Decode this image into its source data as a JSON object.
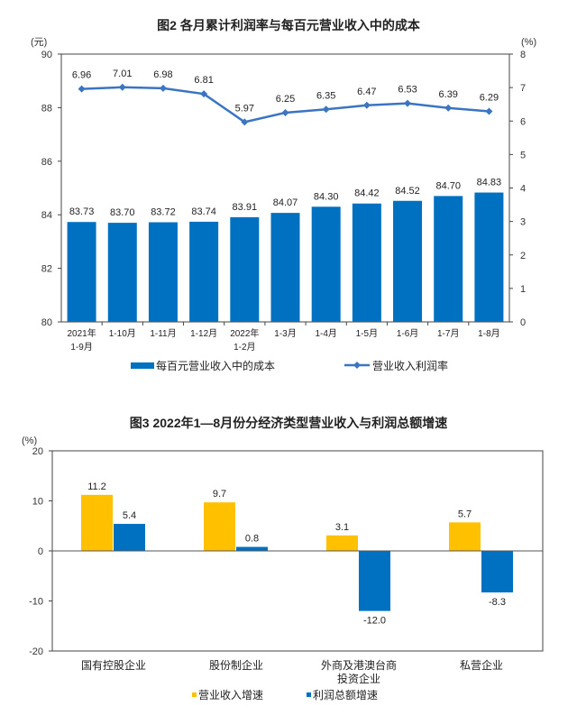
{
  "chart_data": [
    {
      "type": "bar+line",
      "title": "图2  各月累计利润率与每百元营业收入中的成本",
      "ylabel_left": "(元)",
      "ylabel_right": "(%)",
      "ylim_left": [
        80,
        90
      ],
      "yticks_left": [
        "80",
        "82",
        "84",
        "86",
        "88",
        "90"
      ],
      "ylim_right": [
        0,
        8
      ],
      "yticks_right": [
        "0",
        "1",
        "2",
        "3",
        "4",
        "5",
        "6",
        "7",
        "8"
      ],
      "categories": [
        [
          "2021年",
          "1-9月"
        ],
        [
          "1-10月"
        ],
        [
          "1-11月"
        ],
        [
          "1-12月"
        ],
        [
          "2022年",
          "1-2月"
        ],
        [
          "1-3月"
        ],
        [
          "1-4月"
        ],
        [
          "1-5月"
        ],
        [
          "1-6月"
        ],
        [
          "1-7月"
        ],
        [
          "1-8月"
        ]
      ],
      "series": [
        {
          "name": "每百元营业收入中的成本",
          "type": "bar",
          "axis": "left",
          "color": "#0070C0",
          "values": [
            83.73,
            83.7,
            83.72,
            83.74,
            83.91,
            84.07,
            84.3,
            84.42,
            84.52,
            84.7,
            84.83
          ]
        },
        {
          "name": "营业收入利润率",
          "type": "line",
          "axis": "right",
          "color": "#3B75C2",
          "values": [
            6.96,
            7.01,
            6.98,
            6.81,
            5.97,
            6.25,
            6.35,
            6.47,
            6.53,
            6.39,
            6.29
          ]
        }
      ],
      "legend": "bottom",
      "grid": false
    },
    {
      "type": "bar",
      "title": "图3  2022年1—8月份分经济类型营业收入与利润总额增速",
      "ylabel": "(%)",
      "ylim": [
        -20,
        20
      ],
      "yticks": [
        "20",
        "10",
        "0",
        "-10",
        "-20"
      ],
      "categories": [
        [
          "国有控股企业"
        ],
        [
          "股份制企业"
        ],
        [
          "外商及港澳台商",
          "投资企业"
        ],
        [
          "私营企业"
        ]
      ],
      "series": [
        {
          "name": "营业收入增速",
          "color": "#FFC000",
          "values": [
            11.2,
            9.7,
            3.1,
            5.7
          ]
        },
        {
          "name": "利润总额增速",
          "color": "#0070C0",
          "values": [
            5.4,
            0.8,
            -12.0,
            -8.3
          ]
        }
      ],
      "legend": "bottom",
      "grid": false
    }
  ]
}
